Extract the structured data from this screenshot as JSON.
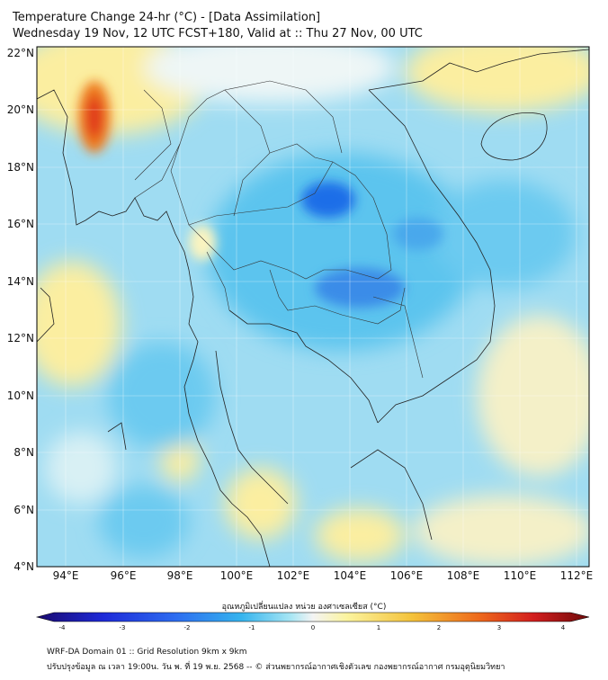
{
  "title": {
    "line1": "Temperature Change 24-hr (°C) - [Data Assimilation]",
    "line2": "Wednesday 19 Nov, 12 UTC FCST+180, Valid at :: Thu 27 Nov, 00 UTC"
  },
  "map": {
    "lat_labels": [
      "22°N",
      "20°N",
      "18°N",
      "16°N",
      "14°N",
      "12°N",
      "10°N",
      "8°N",
      "6°N",
      "4°N"
    ],
    "lon_labels": [
      "94°E",
      "96°E",
      "98°E",
      "100°E",
      "102°E",
      "104°E",
      "106°E",
      "108°E",
      "110°E",
      "112°E"
    ]
  },
  "colorbar": {
    "title": "อุณหภูมิเปลี่ยนแปลง หน่วย องศาเซลเซียส (°C)",
    "ticks": [
      "-4",
      "-3",
      "-2",
      "-1",
      "0",
      "1",
      "2",
      "3",
      "4"
    ],
    "colors": [
      "#1a0a6e",
      "#1e2ad8",
      "#2d6cf0",
      "#35b4ee",
      "#a8e6f4",
      "#f4f4f4",
      "#fbf4a0",
      "#f4c23a",
      "#ee6a1c",
      "#d21e1e",
      "#6e0a0a"
    ]
  },
  "footer": {
    "line1": "WRF-DA Domain 01 :: Grid Resolution 9km x 9km",
    "line2": "ปรับปรุงข้อมูล ณ เวลา 19:00น. วัน พ. ที่ 19 พ.ย. 2568 -- © ส่วนพยากรณ์อากาศเชิงตัวเลข กองพยากรณ์อากาศ กรมอุตุนิยมวิทยา"
  }
}
